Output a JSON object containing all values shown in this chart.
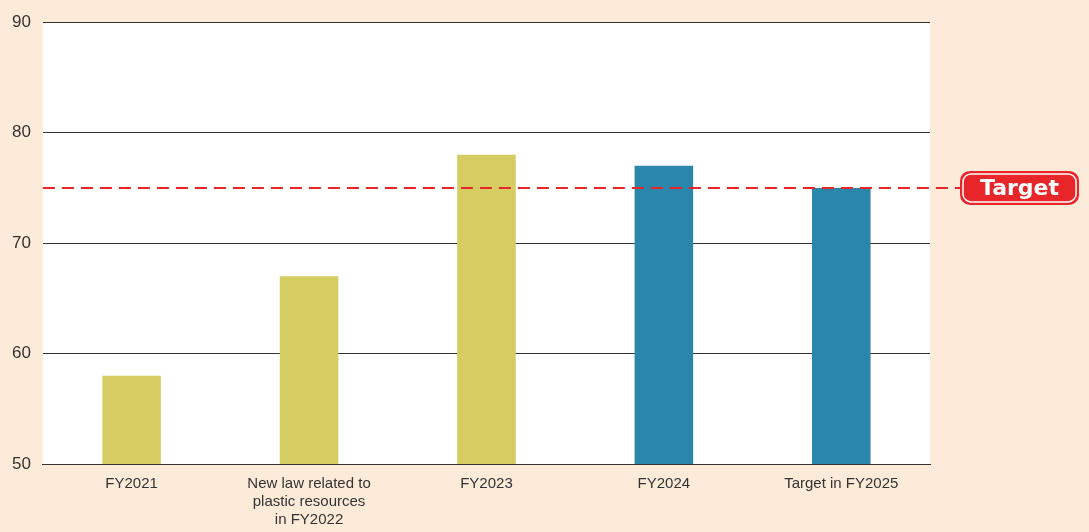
{
  "chart_data": {
    "type": "bar",
    "categories": [
      "FY2021",
      "New law related to plastic resources in FY2022",
      "FY2023",
      "FY2024",
      "Target in FY2025"
    ],
    "values": [
      58,
      67,
      78,
      77,
      75
    ],
    "colors": [
      "#d6cd62",
      "#d6cd62",
      "#d6cd62",
      "#2b86ab",
      "#2b86ab"
    ],
    "ylim": [
      50,
      90
    ],
    "yticks": [
      50,
      60,
      70,
      80,
      90
    ],
    "grid": "y",
    "legend": false,
    "ref_lines": [
      {
        "axis": "y",
        "value": 75,
        "label": "Target",
        "color": "#e8262a",
        "line_style": "dashed"
      }
    ]
  }
}
